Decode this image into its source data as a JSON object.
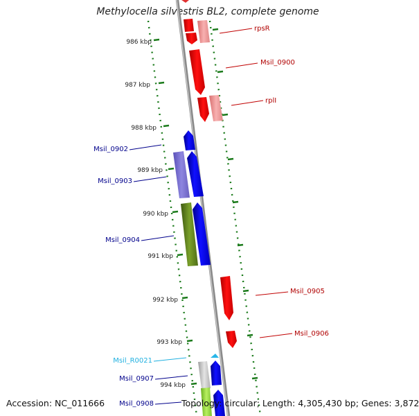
{
  "title": "Methylocella silvestris BL2, complete genome",
  "footer": {
    "accession": "Accession: NC_011666",
    "summary": "Topology: circular; Length: 4,305,430 bp; Genes: 3,872"
  },
  "ruler_labels": [
    "986 kbp",
    "987 kbp",
    "988 kbp",
    "989 kbp",
    "990 kbp",
    "991 kbp",
    "992 kbp",
    "993 kbp",
    "994 kbp"
  ],
  "gene_labels": [
    "rpsR",
    "Msil_0900",
    "rplI",
    "Msil_0902",
    "Msil_0903",
    "Msil_0904",
    "Msil_0905",
    "Msil_0906",
    "Msil_R0021",
    "Msil_0907",
    "Msil_0908"
  ],
  "colors": {
    "forward_cds": "#ff0000",
    "forward_cds_light": "#f4a0a0",
    "reverse_cds": "#0000ff",
    "reverse_cds_light": "#8a80d8",
    "reverse_label": "#00008b",
    "forward_label": "#b00000",
    "rna": "#29b6e8",
    "rna_label": "#20b0e0",
    "other_feature": "#6b8e23",
    "pseudo": "#c0c0c0",
    "ruler_ticks": "#1a7a1a",
    "backbone": "#888888"
  }
}
